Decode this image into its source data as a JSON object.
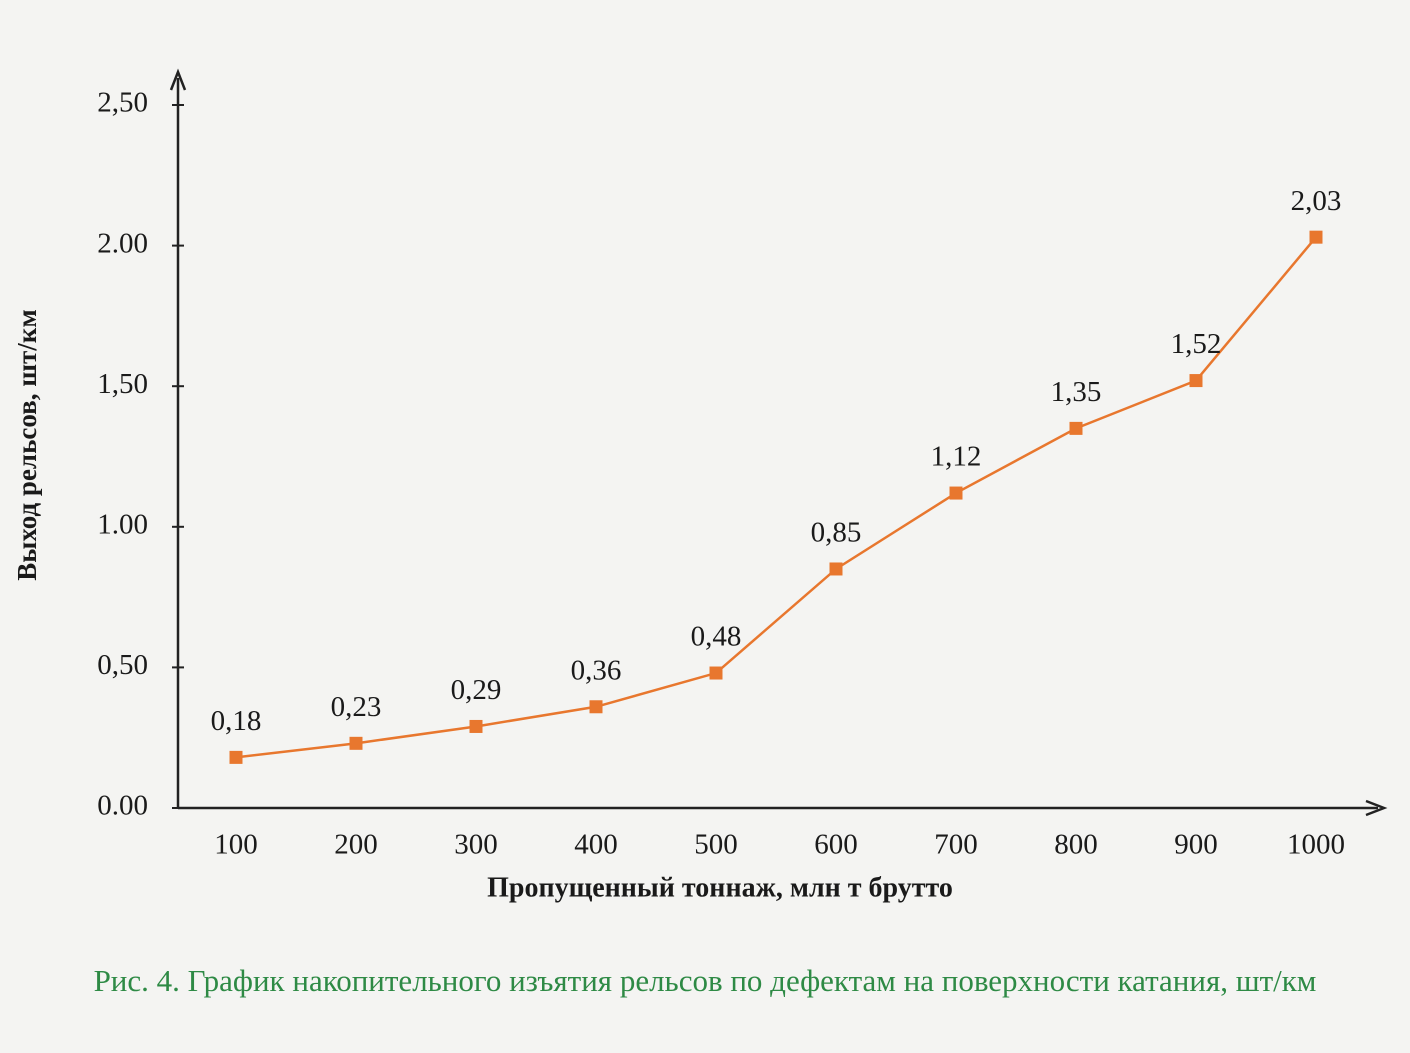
{
  "chart_data": {
    "type": "line",
    "y_label": "Выход рельсов, шт/км",
    "x_label": "Пропущенный тоннаж, млн т брутто",
    "caption": "Рис. 4. График накопительного изъятия рельсов по дефектам на поверхности катания, шт/км",
    "categories": [
      "100",
      "200",
      "300",
      "400",
      "500",
      "600",
      "700",
      "800",
      "900",
      "1000"
    ],
    "values": [
      0.18,
      0.23,
      0.29,
      0.36,
      0.48,
      0.85,
      1.12,
      1.35,
      1.52,
      2.03
    ],
    "value_labels": [
      "0,18",
      "0,23",
      "0,29",
      "0,36",
      "0,48",
      "0,85",
      "1,12",
      "1,35",
      "1,52",
      "2,03"
    ],
    "color": "#e8772e",
    "ylim": [
      0,
      2.5
    ],
    "yticks": [
      {
        "value": 0,
        "label": "0.00"
      },
      {
        "value": 0.5,
        "label": "0,50"
      },
      {
        "value": 1,
        "label": "1.00"
      },
      {
        "value": 1.5,
        "label": "1,50"
      },
      {
        "value": 2,
        "label": "2.00"
      },
      {
        "value": 2.5,
        "label": "2,50"
      }
    ]
  }
}
